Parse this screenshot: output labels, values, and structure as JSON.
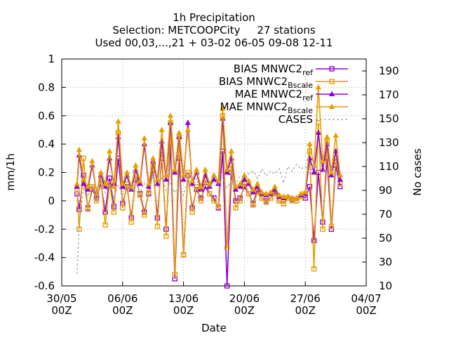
{
  "chart_data": {
    "type": "line",
    "title_lines": [
      "1h Precipitation",
      "Selection: METCOOPCity     27 stations",
      "Used 00,03,...,21 + 03-02 06-05 09-08 12-11"
    ],
    "xlabel": "Date",
    "ylabel_left": "mm/1h",
    "ylabel_right": "No cases",
    "x_range": [
      "2019-05-30T00:00",
      "2019-07-04T00:00"
    ],
    "y_left_range": [
      -0.6,
      1.0
    ],
    "y_right_range": [
      10,
      200
    ],
    "y_left_ticks": [
      -0.6,
      -0.4,
      -0.2,
      0,
      0.2,
      0.4,
      0.6,
      0.8,
      1
    ],
    "y_right_ticks": [
      10,
      30,
      50,
      70,
      90,
      110,
      130,
      150,
      170,
      190
    ],
    "x_ticks": [
      {
        "top": "30/05",
        "bottom": "00Z",
        "date": "2019-05-30T00:00"
      },
      {
        "top": "06/06",
        "bottom": "00Z",
        "date": "2019-06-06T00:00"
      },
      {
        "top": "13/06",
        "bottom": "00Z",
        "date": "2019-06-13T00:00"
      },
      {
        "top": "20/06",
        "bottom": "00Z",
        "date": "2019-06-20T00:00"
      },
      {
        "top": "27/06",
        "bottom": "00Z",
        "date": "2019-06-27T00:00"
      },
      {
        "top": "04/07",
        "bottom": "00Z",
        "date": "2019-07-04T00:00"
      }
    ],
    "grid": true,
    "legend_position": "top-right",
    "series": [
      {
        "name": "BIAS MNWC2_ref",
        "legend_base": "BIAS MNWC2",
        "legend_sub": "ref",
        "axis": "left",
        "color": "#9400d3",
        "marker": "square-open",
        "x": [
          "2019-05-31T18:00",
          "2019-06-01T00:00",
          "2019-06-01T12:00",
          "2019-06-02T00:00",
          "2019-06-02T12:00",
          "2019-06-03T00:00",
          "2019-06-03T12:00",
          "2019-06-04T00:00",
          "2019-06-04T12:00",
          "2019-06-05T00:00",
          "2019-06-05T12:00",
          "2019-06-06T00:00",
          "2019-06-06T12:00",
          "2019-06-07T00:00",
          "2019-06-07T12:00",
          "2019-06-08T00:00",
          "2019-06-08T12:00",
          "2019-06-09T00:00",
          "2019-06-09T12:00",
          "2019-06-10T00:00",
          "2019-06-10T12:00",
          "2019-06-11T00:00",
          "2019-06-11T12:00",
          "2019-06-12T00:00",
          "2019-06-12T12:00",
          "2019-06-13T00:00",
          "2019-06-13T12:00",
          "2019-06-14T00:00",
          "2019-06-14T12:00",
          "2019-06-15T00:00",
          "2019-06-15T12:00",
          "2019-06-16T00:00",
          "2019-06-16T12:00",
          "2019-06-17T00:00",
          "2019-06-17T12:00",
          "2019-06-18T00:00",
          "2019-06-18T12:00",
          "2019-06-19T00:00",
          "2019-06-19T12:00",
          "2019-06-20T00:00",
          "2019-06-20T12:00",
          "2019-06-21T00:00",
          "2019-06-21T12:00",
          "2019-06-22T00:00",
          "2019-06-22T12:00",
          "2019-06-23T00:00",
          "2019-06-23T12:00",
          "2019-06-24T00:00",
          "2019-06-24T12:00",
          "2019-06-25T00:00",
          "2019-06-25T12:00",
          "2019-06-26T00:00",
          "2019-06-26T12:00",
          "2019-06-27T00:00",
          "2019-06-27T12:00",
          "2019-06-28T00:00",
          "2019-06-28T12:00",
          "2019-06-29T00:00",
          "2019-06-29T12:00",
          "2019-06-30T00:00",
          "2019-06-30T12:00",
          "2019-07-01T00:00"
        ],
        "y": [
          0.05,
          -0.06,
          0.18,
          -0.05,
          0.08,
          0.02,
          0.12,
          -0.08,
          0.16,
          -0.04,
          0.3,
          -0.02,
          0.1,
          -0.12,
          0.15,
          0.05,
          -0.08,
          0.05,
          0.22,
          -0.12,
          0.3,
          -0.2,
          0.4,
          -0.55,
          0.3,
          -0.38,
          0.18,
          -0.05,
          0.08,
          0.02,
          0.1,
          0.05,
          0.02,
          -0.05,
          0.35,
          -0.6,
          0.2,
          0.0,
          0.02,
          0.1,
          0.05,
          -0.02,
          0.08,
          0.02,
          0.0,
          0.02,
          0.06,
          0.0,
          -0.02,
          0.02,
          0.01,
          0.0,
          0.03,
          0.02,
          0.1,
          -0.28,
          0.2,
          -0.15,
          0.3,
          -0.2,
          0.25,
          0.1
        ]
      },
      {
        "name": "BIAS MNWC2_Bscale",
        "legend_base": "BIAS MNWC2",
        "legend_sub": "Bscale",
        "axis": "left",
        "color": "#e69f00",
        "marker": "square-open",
        "x": [
          "2019-05-31T18:00",
          "2019-06-01T00:00",
          "2019-06-01T12:00",
          "2019-06-02T00:00",
          "2019-06-02T12:00",
          "2019-06-03T00:00",
          "2019-06-03T12:00",
          "2019-06-04T00:00",
          "2019-06-04T12:00",
          "2019-06-05T00:00",
          "2019-06-05T12:00",
          "2019-06-06T00:00",
          "2019-06-06T12:00",
          "2019-06-07T00:00",
          "2019-06-07T12:00",
          "2019-06-08T00:00",
          "2019-06-08T12:00",
          "2019-06-09T00:00",
          "2019-06-09T12:00",
          "2019-06-10T00:00",
          "2019-06-10T12:00",
          "2019-06-11T00:00",
          "2019-06-11T12:00",
          "2019-06-12T00:00",
          "2019-06-12T12:00",
          "2019-06-13T00:00",
          "2019-06-13T12:00",
          "2019-06-14T00:00",
          "2019-06-14T12:00",
          "2019-06-15T00:00",
          "2019-06-15T12:00",
          "2019-06-16T00:00",
          "2019-06-16T12:00",
          "2019-06-17T00:00",
          "2019-06-17T12:00",
          "2019-06-18T00:00",
          "2019-06-18T12:00",
          "2019-06-19T00:00",
          "2019-06-19T12:00",
          "2019-06-20T00:00",
          "2019-06-20T12:00",
          "2019-06-21T00:00",
          "2019-06-21T12:00",
          "2019-06-22T00:00",
          "2019-06-22T12:00",
          "2019-06-23T00:00",
          "2019-06-23T12:00",
          "2019-06-24T00:00",
          "2019-06-24T12:00",
          "2019-06-25T00:00",
          "2019-06-25T12:00",
          "2019-06-26T00:00",
          "2019-06-26T12:00",
          "2019-06-27T00:00",
          "2019-06-27T12:00",
          "2019-06-28T00:00",
          "2019-06-28T12:00",
          "2019-06-29T00:00",
          "2019-06-29T12:00",
          "2019-06-30T00:00",
          "2019-06-30T12:00",
          "2019-07-01T00:00"
        ],
        "y": [
          0.08,
          -0.2,
          0.3,
          -0.06,
          0.1,
          0.0,
          0.15,
          -0.17,
          0.12,
          -0.08,
          0.48,
          -0.05,
          0.12,
          -0.15,
          0.18,
          0.04,
          -0.1,
          0.06,
          0.25,
          -0.18,
          0.35,
          -0.25,
          0.55,
          -0.52,
          0.45,
          -0.38,
          0.2,
          -0.08,
          0.1,
          0.0,
          0.15,
          0.05,
          0.0,
          -0.04,
          0.6,
          -0.33,
          0.25,
          -0.05,
          0.0,
          0.12,
          0.05,
          -0.03,
          0.06,
          0.02,
          -0.01,
          0.02,
          0.05,
          0.0,
          -0.02,
          0.02,
          0.0,
          0.0,
          0.03,
          0.05,
          0.35,
          -0.48,
          0.55,
          -0.2,
          0.42,
          -0.18,
          0.3,
          0.12
        ]
      },
      {
        "name": "MAE MNWC2_ref",
        "legend_base": "MAE MNWC2",
        "legend_sub": "ref",
        "axis": "left",
        "color": "#9400d3",
        "marker": "triangle-filled",
        "x": [
          "2019-05-31T18:00",
          "2019-06-01T00:00",
          "2019-06-01T12:00",
          "2019-06-02T00:00",
          "2019-06-02T12:00",
          "2019-06-03T00:00",
          "2019-06-03T12:00",
          "2019-06-04T00:00",
          "2019-06-04T12:00",
          "2019-06-05T00:00",
          "2019-06-05T12:00",
          "2019-06-06T00:00",
          "2019-06-06T12:00",
          "2019-06-07T00:00",
          "2019-06-07T12:00",
          "2019-06-08T00:00",
          "2019-06-08T12:00",
          "2019-06-09T00:00",
          "2019-06-09T12:00",
          "2019-06-10T00:00",
          "2019-06-10T12:00",
          "2019-06-11T00:00",
          "2019-06-11T12:00",
          "2019-06-12T00:00",
          "2019-06-12T12:00",
          "2019-06-13T00:00",
          "2019-06-13T12:00",
          "2019-06-14T00:00",
          "2019-06-14T12:00",
          "2019-06-15T00:00",
          "2019-06-15T12:00",
          "2019-06-16T00:00",
          "2019-06-16T12:00",
          "2019-06-17T00:00",
          "2019-06-17T12:00",
          "2019-06-18T00:00",
          "2019-06-18T12:00",
          "2019-06-19T00:00",
          "2019-06-19T12:00",
          "2019-06-20T00:00",
          "2019-06-20T12:00",
          "2019-06-21T00:00",
          "2019-06-21T12:00",
          "2019-06-22T00:00",
          "2019-06-22T12:00",
          "2019-06-23T00:00",
          "2019-06-23T12:00",
          "2019-06-24T00:00",
          "2019-06-24T12:00",
          "2019-06-25T00:00",
          "2019-06-25T12:00",
          "2019-06-26T00:00",
          "2019-06-26T12:00",
          "2019-06-27T00:00",
          "2019-06-27T12:00",
          "2019-06-28T00:00",
          "2019-06-28T12:00",
          "2019-06-29T00:00",
          "2019-06-29T12:00",
          "2019-06-30T00:00",
          "2019-06-30T12:00",
          "2019-07-01T00:00"
        ],
        "y": [
          0.1,
          0.32,
          0.12,
          0.08,
          0.25,
          0.06,
          0.18,
          0.1,
          0.3,
          0.12,
          0.45,
          0.1,
          0.18,
          0.08,
          0.22,
          0.12,
          0.4,
          0.1,
          0.28,
          0.12,
          0.42,
          0.15,
          0.55,
          0.2,
          0.45,
          0.15,
          0.55,
          0.12,
          0.2,
          0.08,
          0.18,
          0.1,
          0.15,
          0.12,
          0.58,
          0.2,
          0.3,
          0.08,
          0.1,
          0.15,
          0.12,
          0.06,
          0.1,
          0.05,
          0.04,
          0.05,
          0.08,
          0.03,
          0.02,
          0.03,
          0.02,
          0.02,
          0.04,
          0.05,
          0.3,
          0.2,
          0.48,
          0.22,
          0.4,
          0.18,
          0.35,
          0.15
        ]
      },
      {
        "name": "MAE MNWC2_Bscale",
        "legend_base": "MAE MNWC2",
        "legend_sub": "Bscale",
        "axis": "left",
        "color": "#e69f00",
        "marker": "triangle-filled",
        "x": [
          "2019-05-31T18:00",
          "2019-06-01T00:00",
          "2019-06-01T12:00",
          "2019-06-02T00:00",
          "2019-06-02T12:00",
          "2019-06-03T00:00",
          "2019-06-03T12:00",
          "2019-06-04T00:00",
          "2019-06-04T12:00",
          "2019-06-05T00:00",
          "2019-06-05T12:00",
          "2019-06-06T00:00",
          "2019-06-06T12:00",
          "2019-06-07T00:00",
          "2019-06-07T12:00",
          "2019-06-08T00:00",
          "2019-06-08T12:00",
          "2019-06-09T00:00",
          "2019-06-09T12:00",
          "2019-06-10T00:00",
          "2019-06-10T12:00",
          "2019-06-11T00:00",
          "2019-06-11T12:00",
          "2019-06-12T00:00",
          "2019-06-12T12:00",
          "2019-06-13T00:00",
          "2019-06-13T12:00",
          "2019-06-14T00:00",
          "2019-06-14T12:00",
          "2019-06-15T00:00",
          "2019-06-15T12:00",
          "2019-06-16T00:00",
          "2019-06-16T12:00",
          "2019-06-17T00:00",
          "2019-06-17T12:00",
          "2019-06-18T00:00",
          "2019-06-18T12:00",
          "2019-06-19T00:00",
          "2019-06-19T12:00",
          "2019-06-20T00:00",
          "2019-06-20T12:00",
          "2019-06-21T00:00",
          "2019-06-21T12:00",
          "2019-06-22T00:00",
          "2019-06-22T12:00",
          "2019-06-23T00:00",
          "2019-06-23T12:00",
          "2019-06-24T00:00",
          "2019-06-24T12:00",
          "2019-06-25T00:00",
          "2019-06-25T12:00",
          "2019-06-26T00:00",
          "2019-06-26T12:00",
          "2019-06-27T00:00",
          "2019-06-27T12:00",
          "2019-06-28T00:00",
          "2019-06-28T12:00",
          "2019-06-29T00:00",
          "2019-06-29T12:00",
          "2019-06-30T00:00",
          "2019-06-30T12:00",
          "2019-07-01T00:00"
        ],
        "y": [
          0.12,
          0.36,
          0.15,
          0.1,
          0.28,
          0.05,
          0.2,
          0.12,
          0.35,
          0.1,
          0.56,
          0.12,
          0.2,
          0.1,
          0.25,
          0.14,
          0.44,
          0.12,
          0.3,
          0.15,
          0.5,
          0.18,
          0.6,
          0.22,
          0.48,
          0.18,
          0.5,
          0.14,
          0.22,
          0.1,
          0.22,
          0.12,
          0.18,
          0.14,
          0.65,
          0.22,
          0.35,
          0.1,
          0.12,
          0.18,
          0.14,
          0.08,
          0.12,
          0.06,
          0.05,
          0.06,
          0.1,
          0.04,
          0.03,
          0.03,
          0.02,
          0.02,
          0.05,
          0.06,
          0.4,
          0.25,
          0.8,
          0.28,
          0.45,
          0.2,
          0.46,
          0.18
        ]
      },
      {
        "name": "CASES",
        "legend_base": "CASES",
        "legend_sub": "",
        "axis": "right",
        "color": "#a0a0a4",
        "marker": "none",
        "dashed": true,
        "x": [
          "2019-05-31T18:00",
          "2019-06-01T00:00",
          "2019-06-01T12:00",
          "2019-06-02T00:00",
          "2019-06-02T12:00",
          "2019-06-03T00:00",
          "2019-06-03T12:00",
          "2019-06-04T00:00",
          "2019-06-04T12:00",
          "2019-06-05T00:00",
          "2019-06-05T12:00",
          "2019-06-06T00:00",
          "2019-06-06T12:00",
          "2019-06-07T00:00",
          "2019-06-07T12:00",
          "2019-06-08T00:00",
          "2019-06-08T12:00",
          "2019-06-09T00:00",
          "2019-06-09T12:00",
          "2019-06-10T00:00",
          "2019-06-10T12:00",
          "2019-06-11T00:00",
          "2019-06-11T12:00",
          "2019-06-12T00:00",
          "2019-06-12T12:00",
          "2019-06-13T00:00",
          "2019-06-13T12:00",
          "2019-06-14T00:00",
          "2019-06-14T12:00",
          "2019-06-15T00:00",
          "2019-06-15T12:00",
          "2019-06-16T00:00",
          "2019-06-16T12:00",
          "2019-06-17T00:00",
          "2019-06-17T12:00",
          "2019-06-18T00:00",
          "2019-06-18T12:00",
          "2019-06-19T00:00",
          "2019-06-19T12:00",
          "2019-06-20T00:00",
          "2019-06-20T12:00",
          "2019-06-21T00:00",
          "2019-06-21T12:00",
          "2019-06-22T00:00",
          "2019-06-22T12:00",
          "2019-06-23T00:00",
          "2019-06-23T12:00",
          "2019-06-24T00:00",
          "2019-06-24T12:00",
          "2019-06-25T00:00",
          "2019-06-25T12:00",
          "2019-06-26T00:00",
          "2019-06-26T12:00",
          "2019-06-27T00:00",
          "2019-06-27T12:00",
          "2019-06-28T00:00",
          "2019-06-28T12:00",
          "2019-06-29T00:00",
          "2019-06-29T12:00",
          "2019-06-30T00:00",
          "2019-06-30T12:00",
          "2019-07-01T00:00"
        ],
        "y": [
          20,
          60,
          92,
          85,
          95,
          80,
          100,
          88,
          96,
          84,
          94,
          86,
          100,
          90,
          98,
          88,
          96,
          86,
          104,
          92,
          100,
          90,
          96,
          88,
          94,
          86,
          98,
          92,
          100,
          90,
          96,
          92,
          104,
          95,
          100,
          92,
          98,
          96,
          102,
          100,
          104,
          106,
          100,
          108,
          102,
          106,
          104,
          108,
          96,
          110,
          106,
          112,
          108,
          110,
          104,
          112,
          106,
          108,
          102,
          110,
          104,
          100
        ]
      }
    ]
  }
}
